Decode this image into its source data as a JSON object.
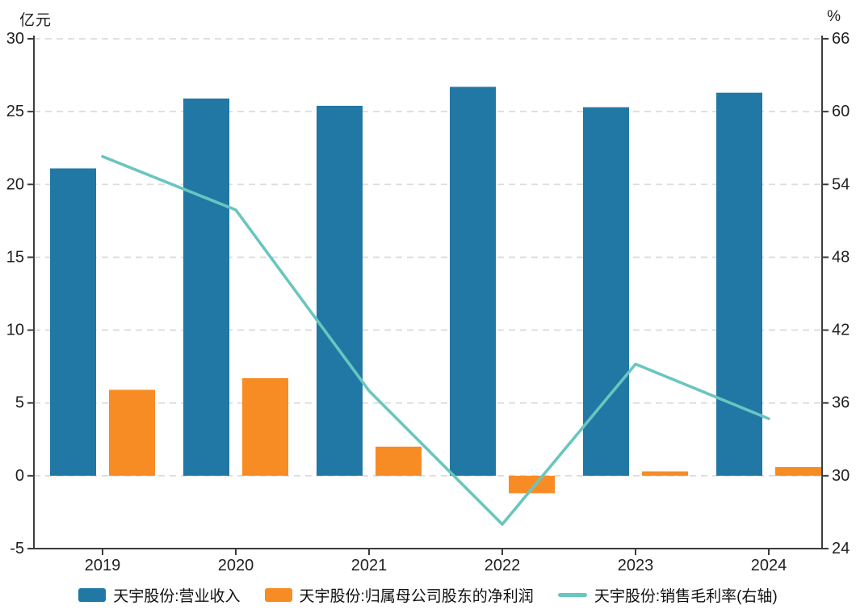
{
  "chart_data": {
    "type": "combo_bar_line",
    "categories": [
      "2019",
      "2020",
      "2021",
      "2022",
      "2023",
      "2024"
    ],
    "series": [
      {
        "name": "天宇股份:营业收入",
        "kind": "bar",
        "axis": "left",
        "color": "#2178A5",
        "values": [
          21.1,
          25.9,
          25.4,
          26.7,
          25.3,
          26.3
        ]
      },
      {
        "name": "天宇股份:归属母公司股东的净利润",
        "kind": "bar",
        "axis": "left",
        "color": "#F78C25",
        "values": [
          5.9,
          6.7,
          2.0,
          -1.2,
          0.3,
          0.6
        ]
      },
      {
        "name": "天宇股份:销售毛利率(右轴)",
        "kind": "line",
        "axis": "right",
        "color": "#69C6BF",
        "values": [
          56.3,
          51.9,
          37.0,
          26.0,
          39.2,
          34.7
        ]
      }
    ],
    "left_axis": {
      "title": "亿元",
      "min": -5,
      "max": 30,
      "step": 5,
      "ticks": [
        30,
        25,
        20,
        15,
        10,
        5,
        0,
        -5
      ]
    },
    "right_axis": {
      "title": "%",
      "min": 24,
      "max": 66,
      "step": 6,
      "ticks": [
        66,
        60,
        54,
        48,
        42,
        36,
        30,
        24
      ]
    },
    "grid": true,
    "legend_position": "bottom",
    "style": {
      "grid_color": "#DCDCDC",
      "axis_color": "#3C3C3C",
      "text_color": "#1F1F1F"
    }
  }
}
